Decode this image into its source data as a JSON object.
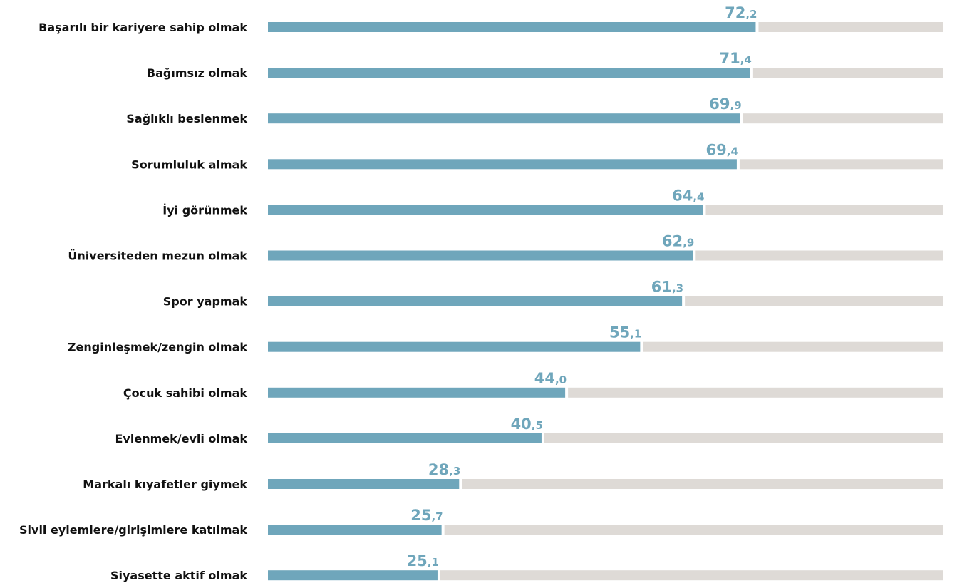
{
  "colors": {
    "bar": "#6fa6bb",
    "track": "#dedad6",
    "value_text": "#6fa6bb",
    "label_text": "#111111"
  },
  "chart_data": {
    "type": "bar",
    "orientation": "horizontal",
    "categories": [
      "Başarılı bir kariyere sahip olmak",
      "Bağımsız olmak",
      "Sağlıklı beslenmek",
      "Sorumluluk almak",
      "İyi görünmek",
      "Üniversiteden mezun olmak",
      "Spor yapmak",
      "Zenginleşmek/zengin olmak",
      "Çocuk sahibi olmak",
      "Evlenmek/evli olmak",
      "Markalı kıyafetler giymek",
      "Sivil eylemlere/girişimlere katılmak",
      "Siyasette aktif olmak"
    ],
    "values": [
      72.2,
      71.4,
      69.9,
      69.4,
      64.4,
      62.9,
      61.3,
      55.1,
      44.0,
      40.5,
      28.3,
      25.7,
      25.1
    ],
    "value_labels": [
      {
        "int": "72",
        "dec": ",2"
      },
      {
        "int": "71",
        "dec": ",4"
      },
      {
        "int": "69",
        "dec": ",9"
      },
      {
        "int": "69",
        "dec": ",4"
      },
      {
        "int": "64",
        "dec": ",4"
      },
      {
        "int": "62",
        "dec": ",9"
      },
      {
        "int": "61",
        "dec": ",3"
      },
      {
        "int": "55",
        "dec": ",1"
      },
      {
        "int": "44",
        "dec": ",0"
      },
      {
        "int": "40",
        "dec": ",5"
      },
      {
        "int": "28",
        "dec": ",3"
      },
      {
        "int": "25",
        "dec": ",7"
      },
      {
        "int": "25",
        "dec": ",1"
      }
    ],
    "xlim": [
      0,
      100
    ],
    "grid": false,
    "legend": "none",
    "title": "",
    "xlabel": "",
    "ylabel": ""
  }
}
